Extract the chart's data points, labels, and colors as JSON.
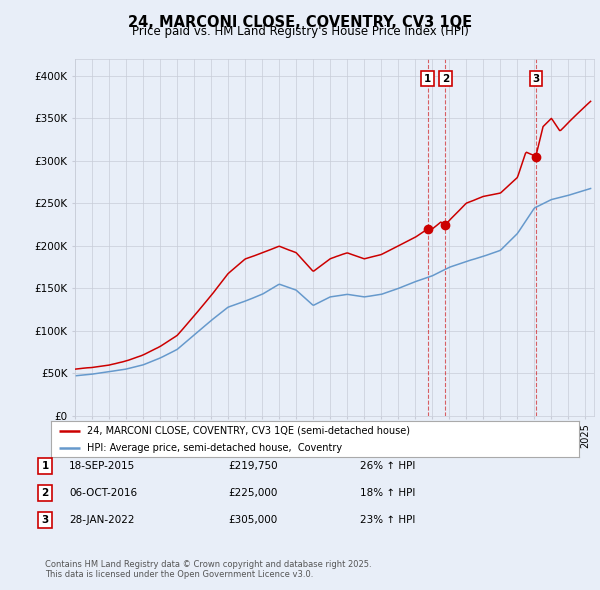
{
  "title": "24, MARCONI CLOSE, COVENTRY, CV3 1QE",
  "subtitle": "Price paid vs. HM Land Registry's House Price Index (HPI)",
  "x_start_year": 1995,
  "x_end_year": 2025,
  "y_min": 0,
  "y_max": 420000,
  "y_ticks": [
    0,
    50000,
    100000,
    150000,
    200000,
    250000,
    300000,
    350000,
    400000
  ],
  "y_tick_labels": [
    "£0",
    "£50K",
    "£100K",
    "£150K",
    "£200K",
    "£250K",
    "£300K",
    "£350K",
    "£400K"
  ],
  "red_color": "#cc0000",
  "blue_color": "#6699cc",
  "background_color": "#e8eef8",
  "plot_bg_color": "#e8eef8",
  "transactions": [
    {
      "num": 1,
      "date": "18-SEP-2015",
      "price": 219750,
      "hpi_diff": "26% ↑ HPI",
      "year": 2015.72
    },
    {
      "num": 2,
      "date": "06-OCT-2016",
      "price": 225000,
      "hpi_diff": "18% ↑ HPI",
      "year": 2016.77
    },
    {
      "num": 3,
      "date": "28-JAN-2022",
      "price": 305000,
      "hpi_diff": "23% ↑ HPI",
      "year": 2022.08
    }
  ],
  "legend_label_red": "24, MARCONI CLOSE, COVENTRY, CV3 1QE (semi-detached house)",
  "legend_label_blue": "HPI: Average price, semi-detached house,  Coventry",
  "footer_line1": "Contains HM Land Registry data © Crown copyright and database right 2025.",
  "footer_line2": "This data is licensed under the Open Government Licence v3.0."
}
